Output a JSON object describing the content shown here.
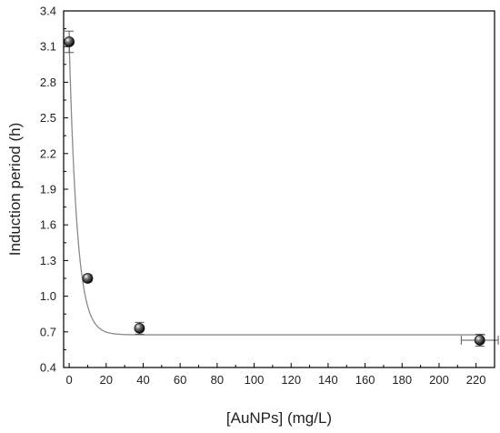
{
  "chart_data": {
    "type": "scatter",
    "xlabel": "[AuNPs]  (mg/L)",
    "ylabel": "Induction period (h)",
    "xlim": [
      -3,
      230
    ],
    "ylim": [
      0.4,
      3.4
    ],
    "x_ticks": [
      0,
      20,
      40,
      60,
      80,
      100,
      120,
      140,
      160,
      180,
      200,
      220
    ],
    "y_ticks": [
      "0.4",
      "0.7",
      "1.0",
      "1.3",
      "1.6",
      "1.9",
      "2.2",
      "2.5",
      "2.8",
      "3.1",
      "3.4"
    ],
    "grid": false,
    "legend": "none",
    "points": [
      {
        "x": 0,
        "y": 3.14,
        "yerr": 0.09,
        "xerr": 0
      },
      {
        "x": 10,
        "y": 1.15,
        "yerr": 0.03,
        "xerr": 0
      },
      {
        "x": 38,
        "y": 0.73,
        "yerr": 0.05,
        "xerr": 0
      },
      {
        "x": 222,
        "y": 0.63,
        "yerr": 0.05,
        "xerr": 10
      }
    ],
    "fit": {
      "type": "exponential-decay",
      "y0": 0.675,
      "A": 2.465,
      "t": 4.3
    },
    "colors": {
      "marker": "#111111",
      "fit_line": "#8a8a8a",
      "axis": "#000000"
    }
  }
}
